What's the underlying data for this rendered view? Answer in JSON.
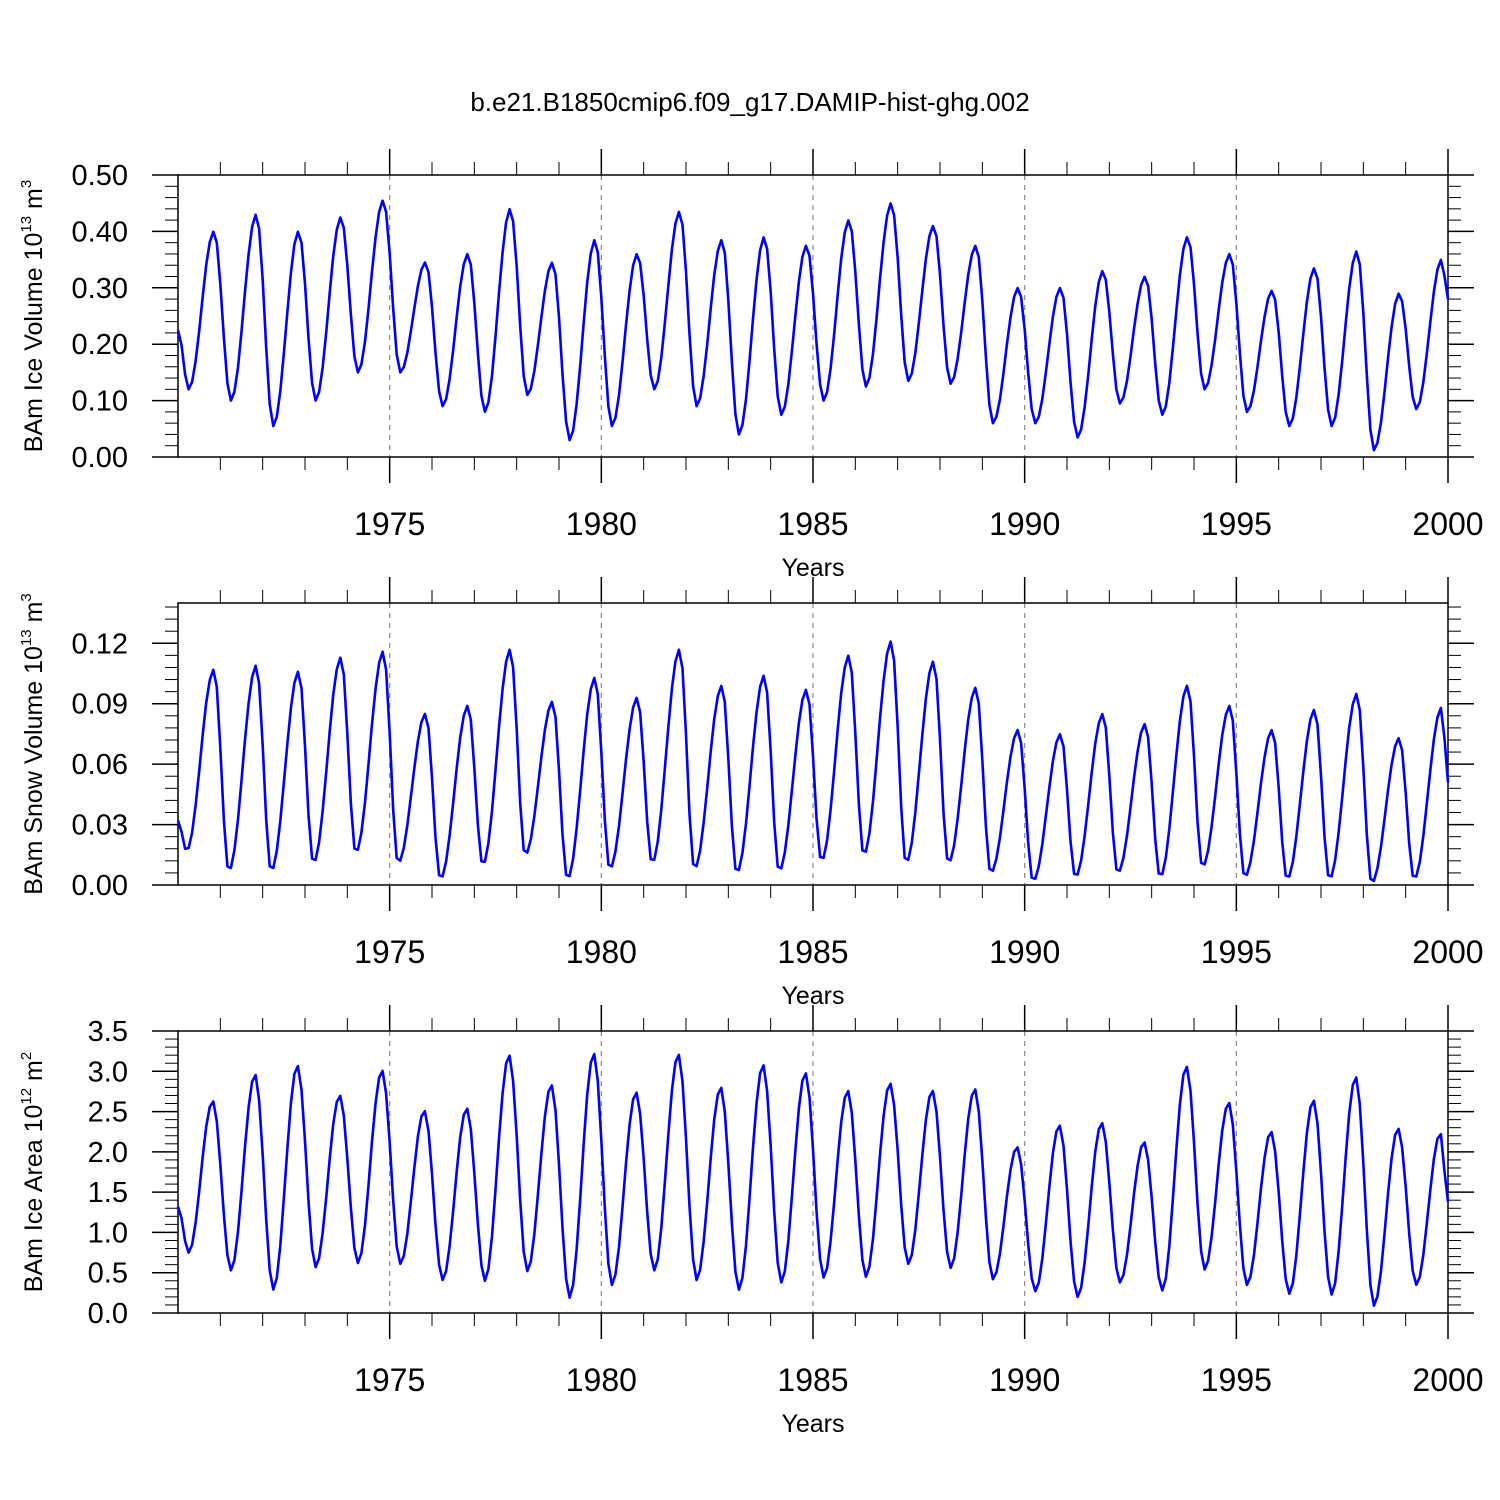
{
  "figure_title": "b.e21.B1850cmip6.f09_g17.DAMIP-hist-ghg.002",
  "colors": {
    "series": "#0000ff",
    "axis": "#000000",
    "grid": "#888888"
  },
  "chart_data": [
    {
      "type": "line",
      "title": "b.e21.B1850cmip6.f09_g17.DAMIP-hist-ghg.002",
      "ylabel": {
        "text": "BAm Ice Volume 10",
        "exponent": "13",
        "unit": " m",
        "unit_exponent": "3"
      },
      "xlabel": "Years",
      "xlim": [
        1970.0,
        2000.0
      ],
      "ylim": [
        0.0,
        0.5
      ],
      "xticks": [
        "1975",
        "1980",
        "1985",
        "1990",
        "1995",
        "2000"
      ],
      "yticks": [
        "0.00",
        "0.10",
        "0.20",
        "0.30",
        "0.40",
        "0.50"
      ],
      "series": [
        {
          "name": "ice_volume",
          "color": "#0000ff",
          "peak_time": 0.85,
          "trough_time": 0.25,
          "cycles": [
            {
              "year": 1970,
              "min": 0.12,
              "max": 0.4
            },
            {
              "year": 1971,
              "min": 0.1,
              "max": 0.43
            },
            {
              "year": 1972,
              "min": 0.055,
              "max": 0.4
            },
            {
              "year": 1973,
              "min": 0.1,
              "max": 0.425
            },
            {
              "year": 1974,
              "min": 0.15,
              "max": 0.455
            },
            {
              "year": 1975,
              "min": 0.15,
              "max": 0.345
            },
            {
              "year": 1976,
              "min": 0.09,
              "max": 0.36
            },
            {
              "year": 1977,
              "min": 0.08,
              "max": 0.44
            },
            {
              "year": 1978,
              "min": 0.11,
              "max": 0.345
            },
            {
              "year": 1979,
              "min": 0.03,
              "max": 0.385
            },
            {
              "year": 1980,
              "min": 0.055,
              "max": 0.36
            },
            {
              "year": 1981,
              "min": 0.12,
              "max": 0.435
            },
            {
              "year": 1982,
              "min": 0.09,
              "max": 0.385
            },
            {
              "year": 1983,
              "min": 0.04,
              "max": 0.39
            },
            {
              "year": 1984,
              "min": 0.075,
              "max": 0.375
            },
            {
              "year": 1985,
              "min": 0.1,
              "max": 0.42
            },
            {
              "year": 1986,
              "min": 0.125,
              "max": 0.45
            },
            {
              "year": 1987,
              "min": 0.135,
              "max": 0.41
            },
            {
              "year": 1988,
              "min": 0.13,
              "max": 0.375
            },
            {
              "year": 1989,
              "min": 0.06,
              "max": 0.3
            },
            {
              "year": 1990,
              "min": 0.06,
              "max": 0.3
            },
            {
              "year": 1991,
              "min": 0.035,
              "max": 0.33
            },
            {
              "year": 1992,
              "min": 0.095,
              "max": 0.32
            },
            {
              "year": 1993,
              "min": 0.075,
              "max": 0.39
            },
            {
              "year": 1994,
              "min": 0.12,
              "max": 0.36
            },
            {
              "year": 1995,
              "min": 0.08,
              "max": 0.295
            },
            {
              "year": 1996,
              "min": 0.055,
              "max": 0.335
            },
            {
              "year": 1997,
              "min": 0.055,
              "max": 0.365
            },
            {
              "year": 1998,
              "min": 0.012,
              "max": 0.29
            },
            {
              "year": 1999,
              "min": 0.085,
              "max": 0.35
            }
          ],
          "start_value": 0.225,
          "end_value": 0.28
        }
      ]
    },
    {
      "type": "line",
      "title": "",
      "ylabel": {
        "text": "BAm Snow Volume 10",
        "exponent": "13",
        "unit": " m",
        "unit_exponent": "3"
      },
      "xlabel": "Years",
      "xlim": [
        1970.0,
        2000.0
      ],
      "ylim": [
        0.0,
        0.14
      ],
      "xticks": [
        "1975",
        "1980",
        "1985",
        "1990",
        "1995",
        "2000"
      ],
      "yticks": [
        "0.00",
        "0.03",
        "0.06",
        "0.09",
        "0.12"
      ],
      "series": [
        {
          "name": "snow_volume",
          "color": "#0000ff",
          "peak_time": 0.85,
          "trough_time": 0.2,
          "cycles": [
            {
              "year": 1970,
              "min": 0.017,
              "max": 0.107
            },
            {
              "year": 1971,
              "min": 0.007,
              "max": 0.109
            },
            {
              "year": 1972,
              "min": 0.007,
              "max": 0.106
            },
            {
              "year": 1973,
              "min": 0.011,
              "max": 0.113
            },
            {
              "year": 1974,
              "min": 0.016,
              "max": 0.116
            },
            {
              "year": 1975,
              "min": 0.011,
              "max": 0.085
            },
            {
              "year": 1976,
              "min": 0.003,
              "max": 0.089
            },
            {
              "year": 1977,
              "min": 0.01,
              "max": 0.117
            },
            {
              "year": 1978,
              "min": 0.015,
              "max": 0.091
            },
            {
              "year": 1979,
              "min": 0.003,
              "max": 0.103
            },
            {
              "year": 1980,
              "min": 0.008,
              "max": 0.093
            },
            {
              "year": 1981,
              "min": 0.011,
              "max": 0.117
            },
            {
              "year": 1982,
              "min": 0.008,
              "max": 0.099
            },
            {
              "year": 1983,
              "min": 0.006,
              "max": 0.104
            },
            {
              "year": 1984,
              "min": 0.007,
              "max": 0.097
            },
            {
              "year": 1985,
              "min": 0.012,
              "max": 0.114
            },
            {
              "year": 1986,
              "min": 0.015,
              "max": 0.121
            },
            {
              "year": 1987,
              "min": 0.011,
              "max": 0.111
            },
            {
              "year": 1988,
              "min": 0.011,
              "max": 0.098
            },
            {
              "year": 1989,
              "min": 0.006,
              "max": 0.077
            },
            {
              "year": 1990,
              "min": 0.002,
              "max": 0.075
            },
            {
              "year": 1991,
              "min": 0.004,
              "max": 0.085
            },
            {
              "year": 1992,
              "min": 0.006,
              "max": 0.08
            },
            {
              "year": 1993,
              "min": 0.004,
              "max": 0.099
            },
            {
              "year": 1994,
              "min": 0.009,
              "max": 0.089
            },
            {
              "year": 1995,
              "min": 0.004,
              "max": 0.077
            },
            {
              "year": 1996,
              "min": 0.003,
              "max": 0.087
            },
            {
              "year": 1997,
              "min": 0.003,
              "max": 0.095
            },
            {
              "year": 1998,
              "min": 0.001,
              "max": 0.073
            },
            {
              "year": 1999,
              "min": 0.003,
              "max": 0.088
            }
          ],
          "start_value": 0.032,
          "end_value": 0.051
        }
      ]
    },
    {
      "type": "line",
      "title": "",
      "ylabel": {
        "text": "BAm Ice Area 10",
        "exponent": "12",
        "unit": " m",
        "unit_exponent": "2"
      },
      "xlabel": "Years",
      "xlim": [
        1970.0,
        2000.0
      ],
      "ylim": [
        0.0,
        3.5
      ],
      "xticks": [
        "1975",
        "1980",
        "1985",
        "1990",
        "1995",
        "2000"
      ],
      "yticks": [
        "0.0",
        "0.5",
        "1.0",
        "1.5",
        "2.0",
        "2.5",
        "3.0",
        "3.5"
      ],
      "series": [
        {
          "name": "ice_area",
          "color": "#0000ff",
          "peak_time": 0.82,
          "trough_time": 0.25,
          "cycles": [
            {
              "year": 1970,
              "min": 0.75,
              "max": 2.63
            },
            {
              "year": 1971,
              "min": 0.53,
              "max": 2.96
            },
            {
              "year": 1972,
              "min": 0.29,
              "max": 3.07
            },
            {
              "year": 1973,
              "min": 0.57,
              "max": 2.7
            },
            {
              "year": 1974,
              "min": 0.62,
              "max": 3.01
            },
            {
              "year": 1975,
              "min": 0.61,
              "max": 2.51
            },
            {
              "year": 1976,
              "min": 0.41,
              "max": 2.54
            },
            {
              "year": 1977,
              "min": 0.4,
              "max": 3.2
            },
            {
              "year": 1978,
              "min": 0.52,
              "max": 2.83
            },
            {
              "year": 1979,
              "min": 0.19,
              "max": 3.22
            },
            {
              "year": 1980,
              "min": 0.35,
              "max": 2.74
            },
            {
              "year": 1981,
              "min": 0.53,
              "max": 3.21
            },
            {
              "year": 1982,
              "min": 0.41,
              "max": 2.8
            },
            {
              "year": 1983,
              "min": 0.29,
              "max": 3.08
            },
            {
              "year": 1984,
              "min": 0.38,
              "max": 2.98
            },
            {
              "year": 1985,
              "min": 0.44,
              "max": 2.76
            },
            {
              "year": 1986,
              "min": 0.45,
              "max": 2.85
            },
            {
              "year": 1987,
              "min": 0.61,
              "max": 2.76
            },
            {
              "year": 1988,
              "min": 0.56,
              "max": 2.78
            },
            {
              "year": 1989,
              "min": 0.42,
              "max": 2.06
            },
            {
              "year": 1990,
              "min": 0.27,
              "max": 2.33
            },
            {
              "year": 1991,
              "min": 0.2,
              "max": 2.36
            },
            {
              "year": 1992,
              "min": 0.38,
              "max": 2.12
            },
            {
              "year": 1993,
              "min": 0.28,
              "max": 3.06
            },
            {
              "year": 1994,
              "min": 0.54,
              "max": 2.61
            },
            {
              "year": 1995,
              "min": 0.35,
              "max": 2.25
            },
            {
              "year": 1996,
              "min": 0.24,
              "max": 2.64
            },
            {
              "year": 1997,
              "min": 0.23,
              "max": 2.93
            },
            {
              "year": 1998,
              "min": 0.09,
              "max": 2.29
            },
            {
              "year": 1999,
              "min": 0.35,
              "max": 2.23
            }
          ],
          "start_value": 1.32,
          "end_value": 1.38
        }
      ]
    }
  ]
}
